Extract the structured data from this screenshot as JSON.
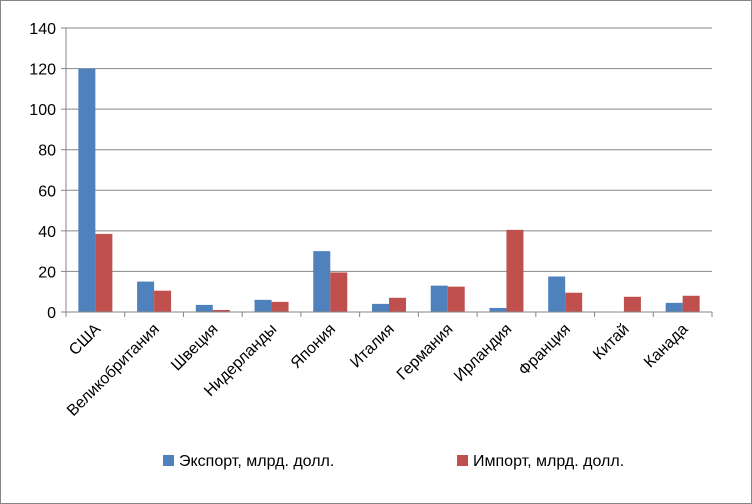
{
  "chart_data": {
    "type": "bar",
    "categories": [
      "США",
      "Великобритания",
      "Швеция",
      "Нидерланды",
      "Япония",
      "Италия",
      "Германия",
      "Ирландия",
      "Франция",
      "Китай",
      "Канада"
    ],
    "series": [
      {
        "name": "Экспорт, млрд. долл.",
        "color": "#4F81BD",
        "values": [
          120,
          15,
          3.5,
          6,
          30,
          4,
          13,
          2,
          17.5,
          0,
          4.5
        ]
      },
      {
        "name": "Импорт, млрд. долл.",
        "color": "#C0504D",
        "values": [
          38.5,
          10.5,
          1,
          5,
          19.5,
          7,
          12.5,
          40.5,
          9.5,
          7.5,
          8
        ]
      }
    ],
    "yticks": [
      0,
      20,
      40,
      60,
      80,
      100,
      120,
      140
    ],
    "ylim": [
      0,
      140
    ],
    "grid": true,
    "legend_position": "bottom"
  }
}
